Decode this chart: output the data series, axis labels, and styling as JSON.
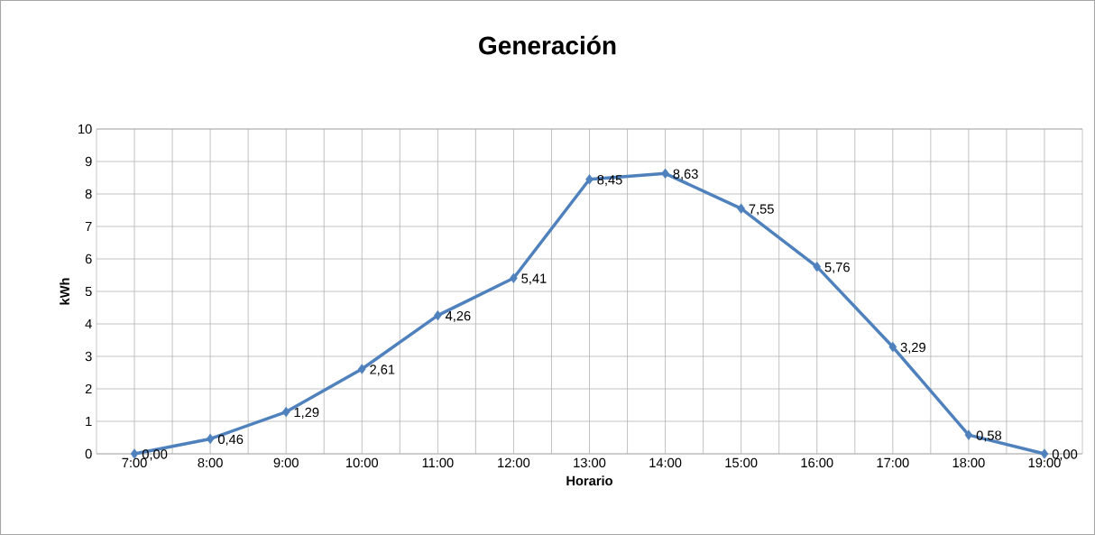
{
  "chart_data": {
    "type": "line",
    "title": "Generación",
    "xlabel": "Horario",
    "ylabel": "kWh",
    "categories": [
      "7:00",
      "8:00",
      "9:00",
      "10:00",
      "11:00",
      "12:00",
      "13:00",
      "14:00",
      "15:00",
      "16:00",
      "17:00",
      "18:00",
      "19:00"
    ],
    "values": [
      0.0,
      0.46,
      1.29,
      2.61,
      4.26,
      5.41,
      8.45,
      8.63,
      7.55,
      5.76,
      3.29,
      0.58,
      0.0
    ],
    "value_labels": [
      "0,00",
      "0,46",
      "1,29",
      "2,61",
      "4,26",
      "5,41",
      "8,45",
      "8,63",
      "7,55",
      "5,76",
      "3,29",
      "0,58",
      "0,00"
    ],
    "color": "#4f81bd",
    "ylim": [
      0,
      10
    ],
    "yticks": [
      0,
      1,
      2,
      3,
      4,
      5,
      6,
      7,
      8,
      9,
      10
    ],
    "grid": true,
    "marker": "diamond",
    "line_style": "solid"
  }
}
